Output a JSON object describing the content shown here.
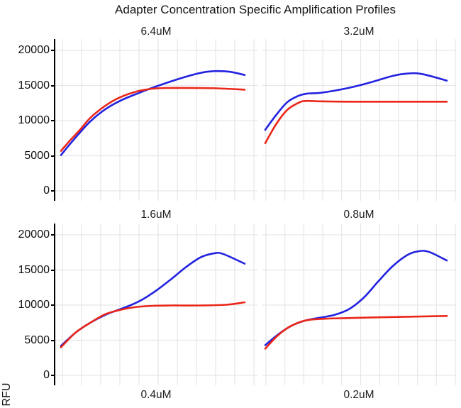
{
  "title": "Adapter Concentration Specific Amplification Profiles",
  "y_axis": {
    "label": "RFU",
    "tick_labels_top_to_bottom": [
      "20000",
      "15000",
      "10000",
      "5000",
      "0"
    ]
  },
  "colors": {
    "blue_series": "#2222e0",
    "red_series": "#ea2619",
    "gridline": "#e7e7e7",
    "axis_line": "#000000",
    "text": "#111111"
  },
  "chart_data": {
    "type": "line",
    "title": "Adapter Concentration Specific Amplification Profiles",
    "ylabel": "RFU",
    "ylim": [
      0,
      20000
    ],
    "y_ticks": [
      0,
      5000,
      10000,
      15000,
      20000
    ],
    "grid": true,
    "legend": false,
    "x_note": "x axis cropped out of screenshot; x given as normalized 0-1 position",
    "facets": [
      {
        "label": "6.4uM",
        "series": [
          {
            "name": "blue",
            "color": "#2222e0",
            "points": [
              [
                0,
                5100
              ],
              [
                0.05,
                6700
              ],
              [
                0.1,
                8200
              ],
              [
                0.16,
                9900
              ],
              [
                0.24,
                11600
              ],
              [
                0.32,
                12800
              ],
              [
                0.42,
                13900
              ],
              [
                0.5,
                14700
              ],
              [
                0.6,
                15600
              ],
              [
                0.7,
                16400
              ],
              [
                0.78,
                16900
              ],
              [
                0.85,
                17050
              ],
              [
                0.92,
                16950
              ],
              [
                1,
                16500
              ]
            ]
          },
          {
            "name": "red",
            "color": "#ea2619",
            "points": [
              [
                0,
                5700
              ],
              [
                0.05,
                7200
              ],
              [
                0.1,
                8600
              ],
              [
                0.16,
                10400
              ],
              [
                0.24,
                12100
              ],
              [
                0.32,
                13300
              ],
              [
                0.42,
                14200
              ],
              [
                0.5,
                14550
              ],
              [
                0.58,
                14650
              ],
              [
                0.7,
                14650
              ],
              [
                0.85,
                14600
              ],
              [
                1,
                14400
              ]
            ]
          }
        ]
      },
      {
        "label": "3.2uM",
        "series": [
          {
            "name": "blue",
            "color": "#2222e0",
            "points": [
              [
                0,
                8700
              ],
              [
                0.06,
                10800
              ],
              [
                0.12,
                12600
              ],
              [
                0.18,
                13500
              ],
              [
                0.23,
                13850
              ],
              [
                0.3,
                13950
              ],
              [
                0.4,
                14350
              ],
              [
                0.5,
                14900
              ],
              [
                0.6,
                15600
              ],
              [
                0.7,
                16350
              ],
              [
                0.78,
                16700
              ],
              [
                0.86,
                16650
              ],
              [
                1,
                15700
              ]
            ]
          },
          {
            "name": "red",
            "color": "#ea2619",
            "points": [
              [
                0,
                6800
              ],
              [
                0.06,
                9500
              ],
              [
                0.12,
                11500
              ],
              [
                0.18,
                12500
              ],
              [
                0.22,
                12800
              ],
              [
                0.3,
                12750
              ],
              [
                0.45,
                12700
              ],
              [
                0.6,
                12700
              ],
              [
                0.8,
                12700
              ],
              [
                1,
                12700
              ]
            ]
          }
        ]
      },
      {
        "label": "1.6uM",
        "series": [
          {
            "name": "blue",
            "color": "#2222e0",
            "points": [
              [
                0,
                4200
              ],
              [
                0.08,
                6100
              ],
              [
                0.16,
                7500
              ],
              [
                0.24,
                8600
              ],
              [
                0.31,
                9300
              ],
              [
                0.38,
                10000
              ],
              [
                0.45,
                10900
              ],
              [
                0.52,
                12100
              ],
              [
                0.6,
                13700
              ],
              [
                0.68,
                15400
              ],
              [
                0.76,
                16800
              ],
              [
                0.83,
                17350
              ],
              [
                0.88,
                17300
              ],
              [
                1,
                15900
              ]
            ]
          },
          {
            "name": "red",
            "color": "#ea2619",
            "points": [
              [
                0,
                4000
              ],
              [
                0.08,
                6100
              ],
              [
                0.16,
                7500
              ],
              [
                0.24,
                8700
              ],
              [
                0.32,
                9300
              ],
              [
                0.4,
                9700
              ],
              [
                0.5,
                9900
              ],
              [
                0.6,
                9950
              ],
              [
                0.75,
                9950
              ],
              [
                0.9,
                10050
              ],
              [
                1,
                10400
              ]
            ]
          }
        ]
      },
      {
        "label": "0.8uM",
        "series": [
          {
            "name": "blue",
            "color": "#2222e0",
            "points": [
              [
                0,
                4300
              ],
              [
                0.07,
                5800
              ],
              [
                0.14,
                7000
              ],
              [
                0.22,
                7800
              ],
              [
                0.3,
                8200
              ],
              [
                0.38,
                8600
              ],
              [
                0.46,
                9400
              ],
              [
                0.54,
                11000
              ],
              [
                0.62,
                13300
              ],
              [
                0.7,
                15500
              ],
              [
                0.78,
                17100
              ],
              [
                0.84,
                17650
              ],
              [
                0.9,
                17600
              ],
              [
                1,
                16350
              ]
            ]
          },
          {
            "name": "red",
            "color": "#ea2619",
            "points": [
              [
                0,
                3800
              ],
              [
                0.07,
                5700
              ],
              [
                0.14,
                7000
              ],
              [
                0.22,
                7800
              ],
              [
                0.32,
                8050
              ],
              [
                0.45,
                8150
              ],
              [
                0.6,
                8250
              ],
              [
                0.8,
                8350
              ],
              [
                1,
                8450
              ]
            ]
          }
        ]
      }
    ],
    "cutoff_facets": [
      "0.4uM",
      "0.2uM"
    ]
  }
}
